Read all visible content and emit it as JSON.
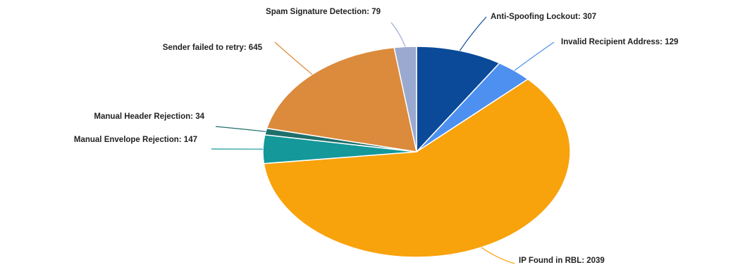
{
  "chart_data": {
    "type": "pie",
    "start_angle_deg": 0,
    "direction": "clockwise",
    "slices": [
      {
        "label": "Anti-Spoofing Lockout",
        "value": 307,
        "color": "#0b4a99",
        "text": "Anti-Spoofing Lockout: 307"
      },
      {
        "label": "Invalid Recipient Address",
        "value": 129,
        "color": "#4d90f0",
        "text": "Invalid Recipient Address: 129"
      },
      {
        "label": "IP Found in RBL",
        "value": 2039,
        "color": "#f8a20c",
        "text": "IP Found in RBL: 2039"
      },
      {
        "label": "Manual Envelope Rejection",
        "value": 147,
        "color": "#14989a",
        "text": "Manual Envelope Rejection: 147"
      },
      {
        "label": "Manual Header Rejection",
        "value": 34,
        "color": "#1f6f6a",
        "text": "Manual Header Rejection: 34"
      },
      {
        "label": "Sender failed to retry",
        "value": 645,
        "color": "#dc8a3c",
        "text": "Sender failed to retry: 645"
      },
      {
        "label": "Spam Signature Detection",
        "value": 79,
        "color": "#9aa9cf",
        "text": "Spam Signature Detection: 79"
      }
    ]
  }
}
